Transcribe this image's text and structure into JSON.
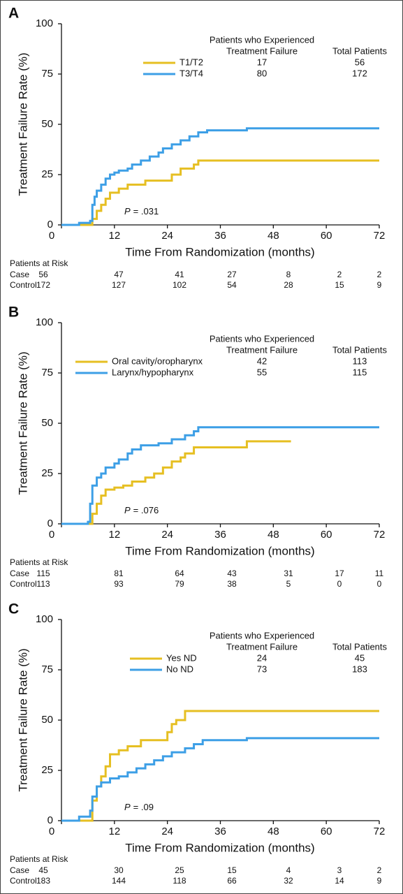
{
  "chart_data": [
    {
      "type": "step",
      "panel": "A",
      "ylabel": "Treatment Failure Rate (%)",
      "xlabel": "Time From Randomization (months)",
      "xlim": [
        0,
        72
      ],
      "ylim": [
        0,
        100
      ],
      "xticks": [
        0,
        12,
        24,
        36,
        48,
        60,
        72
      ],
      "yticks": [
        0,
        25,
        50,
        75,
        100
      ],
      "legend_header": [
        "Patients who Experienced",
        "Treatment Failure"
      ],
      "legend_total_header": "Total Patients",
      "series": [
        {
          "name": "T1/T2",
          "color": "#e6bf22",
          "events": 17,
          "total": 56,
          "x": [
            0,
            6.5,
            7,
            8,
            9,
            10,
            11,
            13,
            15,
            19,
            25,
            27,
            30,
            31,
            72
          ],
          "values": [
            0,
            0,
            3,
            7,
            10,
            13,
            16,
            18,
            20,
            22,
            25,
            28,
            30,
            32,
            32
          ]
        },
        {
          "name": "T3/T4",
          "color": "#3d9fe6",
          "events": 80,
          "total": 172,
          "x": [
            0,
            4,
            6.5,
            7,
            7.5,
            8,
            9,
            10,
            11,
            12,
            13,
            15,
            16,
            18,
            20,
            22,
            23,
            25,
            27,
            29,
            31,
            33,
            42,
            72
          ],
          "values": [
            0,
            1,
            2,
            10,
            14,
            17,
            20,
            23,
            25,
            26,
            27,
            28,
            30,
            32,
            34,
            36,
            38,
            40,
            42,
            44,
            46,
            47,
            48,
            48
          ]
        }
      ],
      "p_label": "P",
      "p_text": "= .031",
      "risk_title": "Patients at Risk",
      "risk_rows": [
        {
          "name": "Case",
          "values": [
            56,
            47,
            41,
            27,
            8,
            2,
            2
          ]
        },
        {
          "name": "Control",
          "values": [
            172,
            127,
            102,
            54,
            28,
            15,
            9
          ]
        }
      ]
    },
    {
      "type": "step",
      "panel": "B",
      "ylabel": "Treatment Failure Rate (%)",
      "xlabel": "Time From Randomization (months)",
      "xlim": [
        0,
        72
      ],
      "ylim": [
        0,
        100
      ],
      "xticks": [
        0,
        12,
        24,
        36,
        48,
        60,
        72
      ],
      "yticks": [
        0,
        25,
        50,
        75,
        100
      ],
      "legend_header": [
        "Patients who Experienced",
        "Treatment Failure"
      ],
      "legend_total_header": "Total Patients",
      "series": [
        {
          "name": "Oral cavity/oropharynx",
          "color": "#e6bf22",
          "events": 42,
          "total": 113,
          "x": [
            0,
            6.5,
            7,
            8,
            9,
            10,
            12,
            14,
            16,
            19,
            21,
            23,
            25,
            27,
            28,
            30,
            42,
            52
          ],
          "values": [
            0,
            0,
            5,
            10,
            14,
            17,
            18,
            19,
            21,
            23,
            25,
            28,
            31,
            33,
            35,
            38,
            41,
            41
          ]
        },
        {
          "name": "Larynx/hypopharynx",
          "color": "#3d9fe6",
          "events": 55,
          "total": 115,
          "x": [
            0,
            6,
            6.5,
            7,
            8,
            9,
            10,
            12,
            13,
            15,
            16,
            18,
            22,
            25,
            28,
            30,
            31,
            72
          ],
          "values": [
            0,
            1,
            10,
            19,
            23,
            25,
            28,
            30,
            32,
            35,
            37,
            39,
            40,
            42,
            44,
            46,
            48,
            48
          ]
        }
      ],
      "p_label": "P",
      "p_text": "= .076",
      "risk_title": "Patients at Risk",
      "risk_rows": [
        {
          "name": "Case",
          "values": [
            115,
            81,
            64,
            43,
            31,
            17,
            11
          ]
        },
        {
          "name": "Control",
          "values": [
            113,
            93,
            79,
            38,
            5,
            0,
            0
          ]
        }
      ]
    },
    {
      "type": "step",
      "panel": "C",
      "ylabel": "Treatment Failure Rate (%)",
      "xlabel": "Time From Randomization (months)",
      "xlim": [
        0,
        72
      ],
      "ylim": [
        0,
        100
      ],
      "xticks": [
        0,
        12,
        24,
        36,
        48,
        60,
        72
      ],
      "yticks": [
        0,
        25,
        50,
        75,
        100
      ],
      "legend_header": [
        "Patients who Experienced",
        "Treatment Failure"
      ],
      "legend_total_header": "Total Patients",
      "series": [
        {
          "name": "Yes ND",
          "color": "#e6bf22",
          "events": 24,
          "total": 45,
          "x": [
            0,
            6.5,
            7,
            8,
            9,
            10,
            11,
            13,
            15,
            18,
            24,
            25,
            26,
            28,
            72
          ],
          "values": [
            0,
            0,
            10,
            17,
            22,
            27,
            33,
            35,
            37,
            40,
            44,
            48,
            50,
            54.5,
            54.5
          ]
        },
        {
          "name": "No ND",
          "color": "#3d9fe6",
          "events": 73,
          "total": 183,
          "x": [
            0,
            4,
            6.5,
            7,
            8,
            9,
            11,
            13,
            15,
            17,
            19,
            21,
            23,
            25,
            28,
            30,
            32,
            42,
            72
          ],
          "values": [
            0,
            2,
            5,
            12,
            17,
            19,
            21,
            22,
            24,
            26,
            28,
            30,
            32,
            34,
            36,
            38,
            40,
            41,
            41
          ]
        }
      ],
      "p_label": "P",
      "p_text": "= .09",
      "risk_title": "Patients at Risk",
      "risk_rows": [
        {
          "name": "Case",
          "values": [
            45,
            30,
            25,
            15,
            4,
            3,
            2
          ]
        },
        {
          "name": "Control",
          "values": [
            183,
            144,
            118,
            66,
            32,
            14,
            9
          ]
        }
      ]
    }
  ]
}
